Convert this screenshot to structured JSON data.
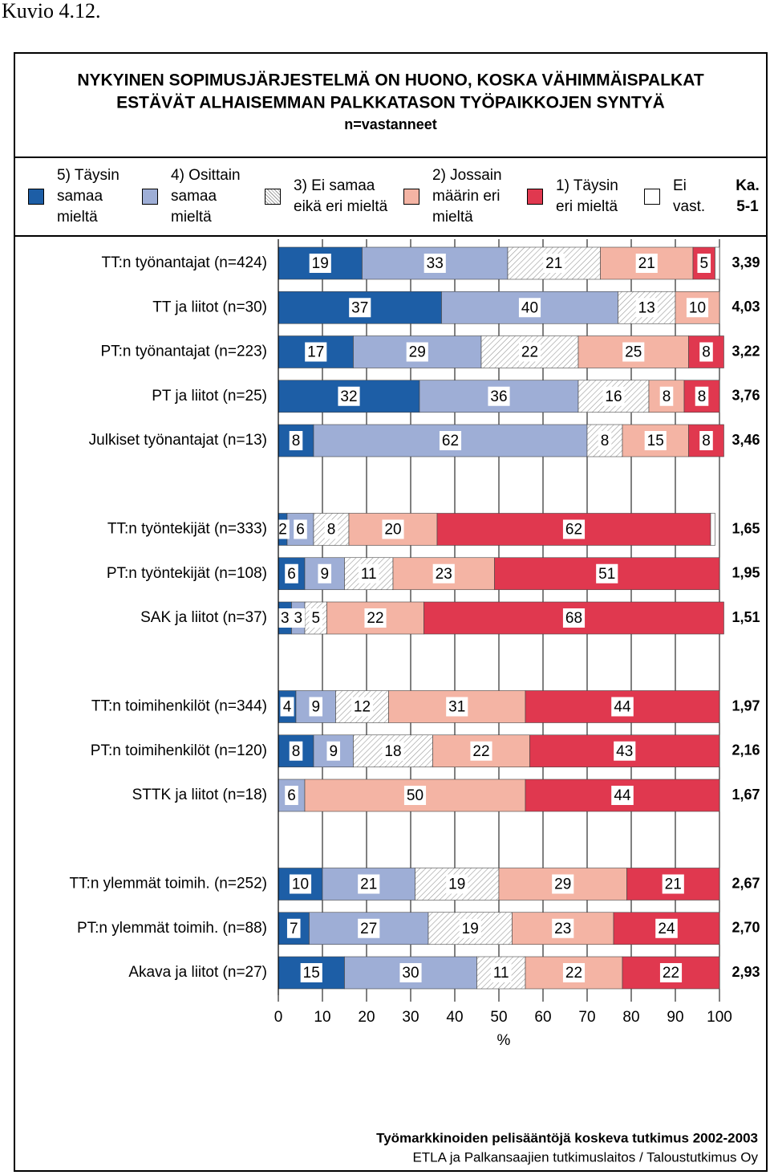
{
  "chart_data": {
    "type": "stacked-bar-horizontal",
    "caption": "Kuvio 4.12.",
    "title": [
      "NYKYINEN SOPIMUSJÄRJESTELMÄ ON HUONO, KOSKA VÄHIMMÄISPALKAT",
      "ESTÄVÄT ALHAISEMMAN PALKKATASON TYÖPAIKKOJEN SYNTYÄ"
    ],
    "subtitle": "n=vastanneet",
    "x_label": "%",
    "categories": [
      "TT:n työnantajat (n=424)",
      "TT ja liitot (n=30)",
      "PT:n työnantajat (n=223)",
      "PT ja liitot (n=25)",
      "Julkiset työnantajat (n=13)",
      null,
      "TT:n työntekijät (n=333)",
      "PT:n työntekijät (n=108)",
      "SAK ja liitot (n=37)",
      null,
      "TT:n toimihenkilöt (n=344)",
      "PT:n toimihenkilöt (n=120)",
      "STTK ja liitot (n=18)",
      null,
      "TT:n ylemmät toimih. (n=252)",
      "PT:n ylemmät toimih. (n=88)",
      "Akava ja liitot (n=27)"
    ],
    "series": [
      {
        "name": "5) Täysin samaa mieltä",
        "color": "#1d5ea6",
        "values": [
          19,
          37,
          17,
          32,
          8,
          null,
          2,
          6,
          3,
          null,
          4,
          8,
          null,
          null,
          10,
          7,
          15
        ]
      },
      {
        "name": "4) Osittain samaa mieltä",
        "color": "#9eaed6",
        "values": [
          33,
          40,
          29,
          36,
          62,
          null,
          6,
          9,
          3,
          null,
          9,
          9,
          6,
          null,
          21,
          27,
          30
        ]
      },
      {
        "name": "3) Ei samaa eikä eri mieltä",
        "color": "#ffffff",
        "fill_pattern": "diagonal-hatch",
        "values": [
          21,
          13,
          22,
          16,
          8,
          null,
          8,
          11,
          5,
          null,
          12,
          18,
          null,
          null,
          19,
          19,
          11
        ]
      },
      {
        "name": "2) Jossain määrin eri mieltä",
        "color": "#f4b4a4",
        "values": [
          21,
          10,
          25,
          8,
          15,
          null,
          20,
          23,
          22,
          null,
          31,
          22,
          50,
          null,
          29,
          23,
          22
        ]
      },
      {
        "name": "1) Täysin eri mieltä",
        "color": "#e0384f",
        "values": [
          5,
          null,
          8,
          8,
          8,
          null,
          62,
          51,
          68,
          null,
          44,
          43,
          44,
          null,
          21,
          24,
          22
        ]
      },
      {
        "name": "Ei vast.",
        "color": "#ffffff",
        "values": [
          1,
          null,
          null,
          null,
          null,
          null,
          1,
          null,
          null,
          null,
          null,
          null,
          null,
          null,
          null,
          null,
          null
        ]
      }
    ],
    "average": {
      "heading": [
        "Ka.",
        "5-1"
      ],
      "values": [
        3.39,
        4.03,
        3.22,
        3.76,
        3.46,
        null,
        1.65,
        1.95,
        1.51,
        null,
        1.97,
        2.16,
        1.67,
        null,
        2.67,
        2.7,
        2.93
      ],
      "value_labels": [
        "3,39",
        "4,03",
        "3,22",
        "3,76",
        "3,46",
        null,
        "1,65",
        "1,95",
        "1,51",
        null,
        "1,97",
        "2,16",
        "1,67",
        null,
        "2,67",
        "2,70",
        "2,93"
      ]
    },
    "xlim": [
      0,
      100
    ],
    "xticks": [
      0,
      10,
      20,
      30,
      40,
      50,
      60,
      70,
      80,
      90,
      100
    ],
    "grid": true,
    "footer": [
      "Työmarkkinoiden pelisääntöjä koskeva tutkimus 2002-2003",
      "ETLA ja Palkansaajien tutkimuslaitos / Taloustutkimus Oy"
    ]
  }
}
